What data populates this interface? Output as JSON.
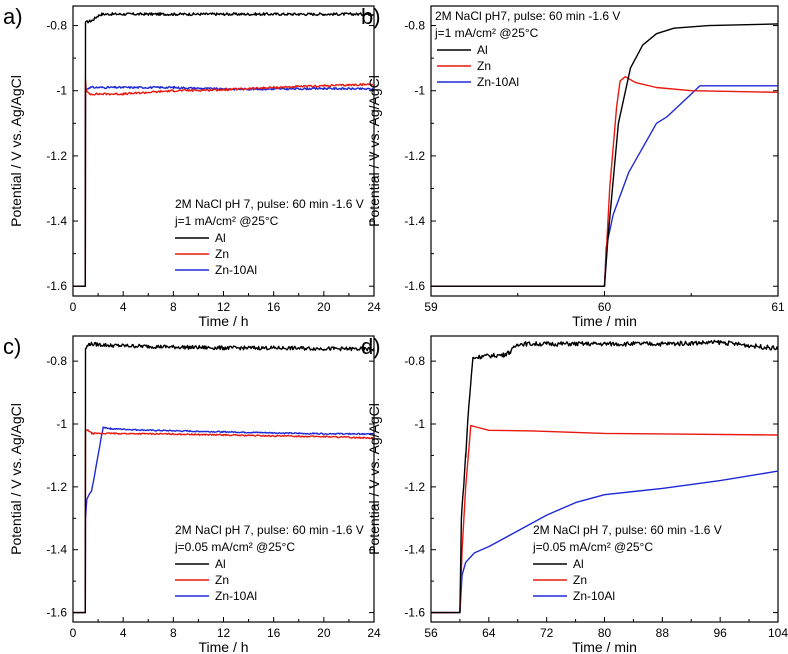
{
  "colors": {
    "Al": "#000000",
    "Zn": "#e8190f",
    "Zn-10Al": "#1f2ad6"
  },
  "chart_data": [
    {
      "panel": "a)",
      "type": "line",
      "xlabel": "Time / h",
      "ylabel": "Potential / V vs. Ag/AgCl",
      "xlim": [
        0,
        24
      ],
      "ylim": [
        -1.63,
        -0.74
      ],
      "xticks": [
        0,
        4,
        8,
        12,
        16,
        20,
        24
      ],
      "yticks": [
        -1.6,
        -1.4,
        -1.2,
        -1.0,
        -0.8
      ],
      "annotation_line1": "2M NaCl pH 7, pulse: 60 min -1.6 V",
      "annotation_line2": "j=1 mA/cm² @25°C",
      "legend_position": "bottom-right",
      "series": [
        {
          "name": "Al",
          "noise": 0.004,
          "points": [
            [
              0,
              -1.6
            ],
            [
              0.98,
              -1.6
            ],
            [
              1.0,
              -0.79
            ],
            [
              1.5,
              -0.785
            ],
            [
              2.0,
              -0.77
            ],
            [
              2.3,
              -0.765
            ],
            [
              6,
              -0.765
            ],
            [
              12,
              -0.765
            ],
            [
              18,
              -0.765
            ],
            [
              24,
              -0.765
            ]
          ]
        },
        {
          "name": "Zn",
          "noise": 0.003,
          "points": [
            [
              0,
              -1.6
            ],
            [
              0.98,
              -1.6
            ],
            [
              1.0,
              -0.965
            ],
            [
              1.05,
              -1.0
            ],
            [
              1.3,
              -1.01
            ],
            [
              4,
              -1.01
            ],
            [
              8,
              -1.0
            ],
            [
              12,
              -0.997
            ],
            [
              16,
              -0.99
            ],
            [
              20,
              -0.985
            ],
            [
              24,
              -0.98
            ]
          ]
        },
        {
          "name": "Zn-10Al",
          "noise": 0.003,
          "points": [
            [
              0,
              -1.6
            ],
            [
              0.98,
              -1.6
            ],
            [
              1.0,
              -1.0
            ],
            [
              1.3,
              -0.99
            ],
            [
              4,
              -0.99
            ],
            [
              8,
              -0.99
            ],
            [
              12,
              -0.995
            ],
            [
              16,
              -0.995
            ],
            [
              20,
              -0.993
            ],
            [
              24,
              -0.995
            ]
          ]
        }
      ]
    },
    {
      "panel": "b)",
      "type": "line",
      "xlabel": "Time / min",
      "ylabel": "Potential / V vs. Ag/AgCl",
      "xlim": [
        59,
        61
      ],
      "ylim": [
        -1.63,
        -0.74
      ],
      "xticks": [
        59,
        60,
        61
      ],
      "yticks": [
        -1.6,
        -1.4,
        -1.2,
        -1.0,
        -0.8
      ],
      "annotation_line1": "2M NaCl pH7, pulse: 60 min -1.6 V",
      "annotation_line2": "j=1 mA/cm² @25°C",
      "legend_position": "top-left",
      "series": [
        {
          "name": "Al",
          "noise": 0,
          "points": [
            [
              59,
              -1.6
            ],
            [
              60,
              -1.6
            ],
            [
              60.02,
              -1.45
            ],
            [
              60.08,
              -1.1
            ],
            [
              60.15,
              -0.93
            ],
            [
              60.22,
              -0.86
            ],
            [
              60.3,
              -0.825
            ],
            [
              60.4,
              -0.808
            ],
            [
              60.6,
              -0.8
            ],
            [
              61,
              -0.795
            ]
          ]
        },
        {
          "name": "Zn",
          "noise": 0,
          "points": [
            [
              59,
              -1.6
            ],
            [
              60,
              -1.6
            ],
            [
              60.03,
              -1.3
            ],
            [
              60.07,
              -1.05
            ],
            [
              60.09,
              -0.97
            ],
            [
              60.12,
              -0.957
            ],
            [
              60.18,
              -0.975
            ],
            [
              60.3,
              -0.99
            ],
            [
              60.5,
              -1.0
            ],
            [
              61,
              -1.005
            ]
          ]
        },
        {
          "name": "Zn-10Al",
          "noise": 0,
          "points": [
            [
              59,
              -1.6
            ],
            [
              60,
              -1.6
            ],
            [
              60.01,
              -1.48
            ],
            [
              60.05,
              -1.38
            ],
            [
              60.14,
              -1.25
            ],
            [
              60.3,
              -1.1
            ],
            [
              60.36,
              -1.08
            ],
            [
              60.5,
              -1.01
            ],
            [
              60.55,
              -0.985
            ],
            [
              61,
              -0.985
            ]
          ]
        }
      ]
    },
    {
      "panel": "c)",
      "type": "line",
      "xlabel": "Time / h",
      "ylabel": "Potential / V vs. Ag/AgCl",
      "xlim": [
        0,
        24
      ],
      "ylim": [
        -1.63,
        -0.72
      ],
      "xticks": [
        0,
        4,
        8,
        12,
        16,
        20,
        24
      ],
      "yticks": [
        -1.6,
        -1.4,
        -1.2,
        -1.0,
        -0.8
      ],
      "annotation_line1": "2M NaCl pH 7, pulse: 60 min -1.6 V",
      "annotation_line2": "j=0.05 mA/cm² @25°C",
      "legend_position": "bottom-right",
      "series": [
        {
          "name": "Al",
          "noise": 0.006,
          "points": [
            [
              0,
              -1.6
            ],
            [
              0.98,
              -1.6
            ],
            [
              1.0,
              -0.76
            ],
            [
              1.3,
              -0.745
            ],
            [
              3,
              -0.75
            ],
            [
              8,
              -0.755
            ],
            [
              12,
              -0.758
            ],
            [
              16,
              -0.758
            ],
            [
              20,
              -0.76
            ],
            [
              24,
              -0.762
            ]
          ]
        },
        {
          "name": "Zn",
          "noise": 0.002,
          "points": [
            [
              0,
              -1.6
            ],
            [
              0.98,
              -1.6
            ],
            [
              1.0,
              -1.02
            ],
            [
              1.2,
              -1.02
            ],
            [
              1.5,
              -1.03
            ],
            [
              3,
              -1.03
            ],
            [
              8,
              -1.032
            ],
            [
              12,
              -1.035
            ],
            [
              16,
              -1.038
            ],
            [
              20,
              -1.04
            ],
            [
              24,
              -1.045
            ]
          ]
        },
        {
          "name": "Zn-10Al",
          "noise": 0.002,
          "points": [
            [
              0,
              -1.6
            ],
            [
              0.98,
              -1.6
            ],
            [
              1.0,
              -1.3
            ],
            [
              1.1,
              -1.24
            ],
            [
              1.5,
              -1.21
            ],
            [
              2.0,
              -1.1
            ],
            [
              2.4,
              -1.01
            ],
            [
              3,
              -1.015
            ],
            [
              6,
              -1.02
            ],
            [
              12,
              -1.025
            ],
            [
              18,
              -1.03
            ],
            [
              24,
              -1.032
            ]
          ]
        }
      ]
    },
    {
      "panel": "d)",
      "type": "line",
      "xlabel": "Time / min",
      "ylabel": "Potential / V vs. Ag/AgCl",
      "xlim": [
        56,
        104
      ],
      "ylim": [
        -1.63,
        -0.72
      ],
      "xticks": [
        56,
        64,
        72,
        80,
        88,
        96,
        104
      ],
      "yticks": [
        -1.6,
        -1.4,
        -1.2,
        -1.0,
        -0.8
      ],
      "annotation_line1": "2M NaCl pH 7, pulse: 60 min -1.6 V",
      "annotation_line2": "j=0.05 mA/cm² @25°C",
      "legend_position": "bottom-right",
      "series": [
        {
          "name": "Al",
          "noise": 0.007,
          "points": [
            [
              56,
              -1.6
            ],
            [
              60,
              -1.6
            ],
            [
              60.2,
              -1.3
            ],
            [
              60.8,
              -1.1
            ],
            [
              61.2,
              -0.95
            ],
            [
              61.8,
              -0.79
            ],
            [
              63,
              -0.785
            ],
            [
              66,
              -0.78
            ],
            [
              67,
              -0.77
            ],
            [
              68,
              -0.745
            ],
            [
              72,
              -0.745
            ],
            [
              80,
              -0.745
            ],
            [
              88,
              -0.745
            ],
            [
              96,
              -0.74
            ],
            [
              104,
              -0.76
            ]
          ]
        },
        {
          "name": "Zn",
          "noise": 0,
          "points": [
            [
              56,
              -1.6
            ],
            [
              60,
              -1.6
            ],
            [
              60.3,
              -1.4
            ],
            [
              60.8,
              -1.2
            ],
            [
              61.5,
              -1.005
            ],
            [
              62,
              -1.008
            ],
            [
              64,
              -1.02
            ],
            [
              70,
              -1.022
            ],
            [
              80,
              -1.03
            ],
            [
              90,
              -1.032
            ],
            [
              104,
              -1.035
            ]
          ]
        },
        {
          "name": "Zn-10Al",
          "noise": 0,
          "points": [
            [
              56,
              -1.6
            ],
            [
              60,
              -1.6
            ],
            [
              60.3,
              -1.48
            ],
            [
              60.8,
              -1.44
            ],
            [
              62,
              -1.41
            ],
            [
              64,
              -1.39
            ],
            [
              68,
              -1.34
            ],
            [
              72,
              -1.29
            ],
            [
              76,
              -1.25
            ],
            [
              80,
              -1.225
            ],
            [
              88,
              -1.205
            ],
            [
              96,
              -1.18
            ],
            [
              104,
              -1.15
            ]
          ]
        }
      ]
    }
  ]
}
